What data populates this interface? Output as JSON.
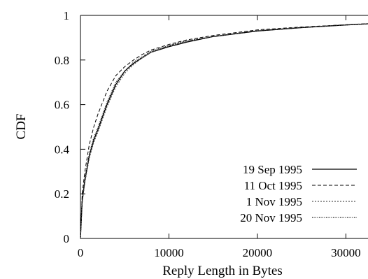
{
  "chart_data": {
    "type": "line",
    "xlabel": "Reply Length in Bytes",
    "ylabel": "CDF",
    "xlim": [
      0,
      32500
    ],
    "ylim": [
      0,
      1
    ],
    "xticks": [
      0,
      10000,
      20000,
      30000
    ],
    "xtick_labels": [
      "0",
      "10000",
      "20000",
      "30000"
    ],
    "yticks": [
      0,
      0.2,
      0.4,
      0.6,
      0.8,
      1
    ],
    "ytick_labels": [
      "0",
      "0.2",
      "0.4",
      "0.6",
      "0.8",
      "1"
    ],
    "grid": false,
    "legend_position": "lower-right",
    "series": [
      {
        "name": "19 Sep 1995",
        "style": "solid",
        "color": "#000000",
        "x": [
          0,
          200,
          500,
          1000,
          1500,
          2000,
          3000,
          4000,
          5000,
          6000,
          7000,
          8000,
          10000,
          12000,
          15000,
          20000,
          25000,
          30000,
          32500
        ],
        "y": [
          0,
          0.17,
          0.26,
          0.37,
          0.44,
          0.49,
          0.6,
          0.69,
          0.75,
          0.785,
          0.81,
          0.835,
          0.86,
          0.88,
          0.905,
          0.93,
          0.945,
          0.957,
          0.962
        ]
      },
      {
        "name": "11 Oct 1995",
        "style": "dashed",
        "color": "#000000",
        "x": [
          0,
          200,
          500,
          1000,
          1500,
          2000,
          3000,
          4000,
          5000,
          6000,
          7000,
          8000,
          10000,
          12000,
          15000,
          20000,
          25000,
          30000,
          32500
        ],
        "y": [
          0,
          0.2,
          0.3,
          0.42,
          0.5,
          0.56,
          0.66,
          0.73,
          0.77,
          0.8,
          0.825,
          0.845,
          0.87,
          0.89,
          0.91,
          0.935,
          0.948,
          0.958,
          0.963
        ]
      },
      {
        "name": "1 Nov 1995",
        "style": "dotted-fine",
        "color": "#555555",
        "x": [
          0,
          200,
          500,
          1000,
          1500,
          2000,
          3000,
          4000,
          5000,
          6000,
          7000,
          8000,
          10000,
          12000,
          15000,
          20000,
          25000,
          30000,
          32500
        ],
        "y": [
          0,
          0.16,
          0.25,
          0.36,
          0.43,
          0.48,
          0.59,
          0.68,
          0.74,
          0.78,
          0.81,
          0.835,
          0.865,
          0.885,
          0.905,
          0.932,
          0.947,
          0.958,
          0.963
        ]
      },
      {
        "name": "20 Nov 1995",
        "style": "dotted",
        "color": "#000000",
        "x": [
          0,
          200,
          500,
          1000,
          1500,
          2000,
          3000,
          4000,
          5000,
          6000,
          7000,
          8000,
          10000,
          12000,
          15000,
          20000,
          25000,
          30000,
          32500
        ],
        "y": [
          0,
          0.18,
          0.27,
          0.38,
          0.45,
          0.5,
          0.61,
          0.7,
          0.75,
          0.79,
          0.815,
          0.84,
          0.865,
          0.885,
          0.905,
          0.93,
          0.945,
          0.957,
          0.962
        ]
      }
    ]
  }
}
